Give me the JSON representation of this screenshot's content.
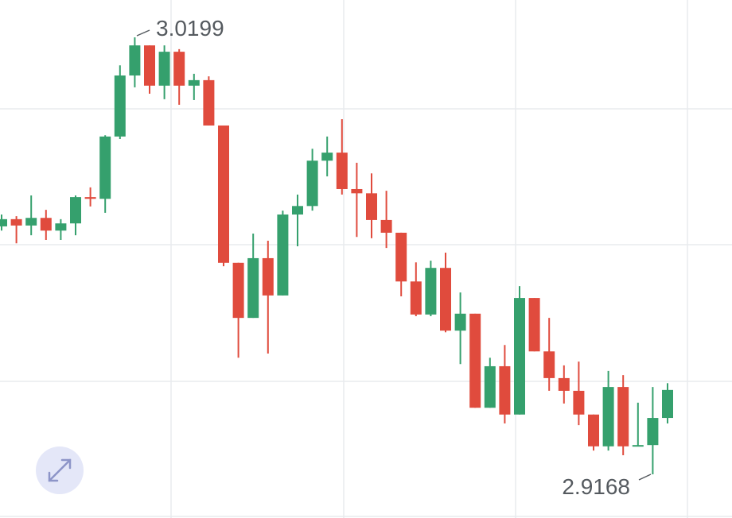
{
  "chart_data": {
    "type": "candlestick",
    "up_color": "#35a06d",
    "down_color": "#e04b3d",
    "high_label": 3.0199,
    "low_label": 2.9168,
    "open": [
      2.9753,
      2.977,
      2.9755,
      2.9773,
      2.9743,
      2.976,
      2.9822,
      2.9818,
      2.9965,
      3.0109,
      3.018,
      3.0085,
      3.0165,
      3.0085,
      3.0098,
      2.9991,
      2.9667,
      2.9537,
      2.9678,
      2.959,
      2.9781,
      2.9801,
      2.9908,
      2.9927,
      2.9841,
      2.9831,
      2.9768,
      2.9738,
      2.9623,
      2.9545,
      2.9655,
      2.9507,
      2.9547,
      2.9325,
      2.9423,
      2.9309,
      2.9584,
      2.9458,
      2.9395,
      2.9365,
      2.9309,
      2.9234,
      2.9374,
      2.9234,
      2.9237,
      2.9301
    ],
    "high": [
      2.9781,
      2.9777,
      2.9826,
      2.9792,
      2.977,
      2.9826,
      2.9845,
      2.9968,
      3.0133,
      3.0199,
      3.018,
      3.018,
      3.0171,
      3.0113,
      3.0107,
      2.9991,
      2.9667,
      2.9736,
      2.9719,
      2.979,
      2.9828,
      2.9936,
      2.9965,
      3.0006,
      2.9903,
      2.9878,
      2.9837,
      2.9738,
      2.9668,
      2.9672,
      2.9691,
      2.9597,
      2.9547,
      2.9443,
      2.9473,
      2.9612,
      2.9584,
      2.9537,
      2.9425,
      2.9434,
      2.9309,
      2.9412,
      2.9402,
      2.9337,
      2.9374,
      2.9383
    ],
    "low": [
      2.9743,
      2.9713,
      2.9732,
      2.9721,
      2.9721,
      2.9732,
      2.98,
      2.9785,
      2.9959,
      3.0081,
      3.0066,
      3.0053,
      3.004,
      3.0051,
      2.9991,
      2.9659,
      2.9443,
      2.9537,
      2.9453,
      2.959,
      2.9706,
      2.979,
      2.9871,
      2.9828,
      2.9728,
      2.9725,
      2.9702,
      2.9588,
      2.9541,
      2.9541,
      2.9503,
      2.9428,
      2.9325,
      2.9325,
      2.9288,
      2.9309,
      2.9458,
      2.9365,
      2.9335,
      2.9284,
      2.9224,
      2.9224,
      2.9213,
      2.9234,
      2.9168,
      2.9288
    ],
    "close": [
      2.977,
      2.9755,
      2.9773,
      2.9743,
      2.976,
      2.9822,
      2.9818,
      2.9965,
      3.0109,
      3.018,
      3.0085,
      3.0165,
      3.0085,
      3.0098,
      2.9991,
      2.9667,
      2.9537,
      2.9678,
      2.959,
      2.9781,
      2.9801,
      2.9908,
      2.9927,
      2.9841,
      2.9831,
      2.9768,
      2.9738,
      2.9623,
      2.9545,
      2.9655,
      2.9507,
      2.9547,
      2.9325,
      2.9423,
      2.9309,
      2.9584,
      2.9458,
      2.9395,
      2.9365,
      2.9309,
      2.9234,
      2.9374,
      2.9234,
      2.9237,
      2.9301,
      2.9367
    ]
  }
}
